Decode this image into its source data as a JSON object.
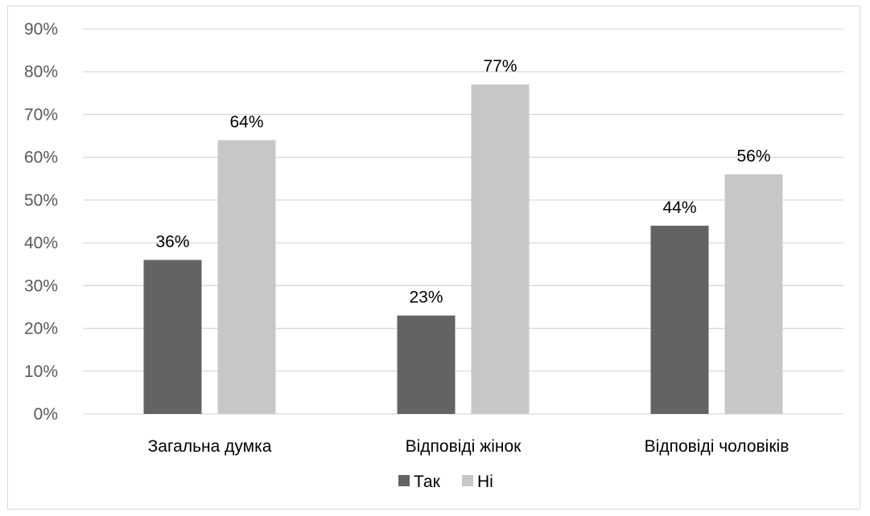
{
  "chart_data": {
    "type": "bar",
    "categories": [
      "Загальна думка",
      "Відповіді жінок",
      "Відповіді чоловіків"
    ],
    "series": [
      {
        "name": "Так",
        "values": [
          36,
          23,
          44
        ],
        "labels": [
          "36%",
          "23%",
          "44%"
        ],
        "color": "#636366"
      },
      {
        "name": "Ні",
        "values": [
          64,
          77,
          56
        ],
        "labels": [
          "64%",
          "77%",
          "56%"
        ],
        "color": "#c7c7c7"
      }
    ],
    "yticks": [
      0,
      10,
      20,
      30,
      40,
      50,
      60,
      70,
      80,
      90
    ],
    "ytick_labels": [
      "0%",
      "10%",
      "20%",
      "30%",
      "40%",
      "50%",
      "60%",
      "70%",
      "80%",
      "90%"
    ],
    "ylim": [
      0,
      90
    ],
    "grid": true,
    "legend_position": "bottom",
    "gridline_color": "#d9d9d9"
  }
}
